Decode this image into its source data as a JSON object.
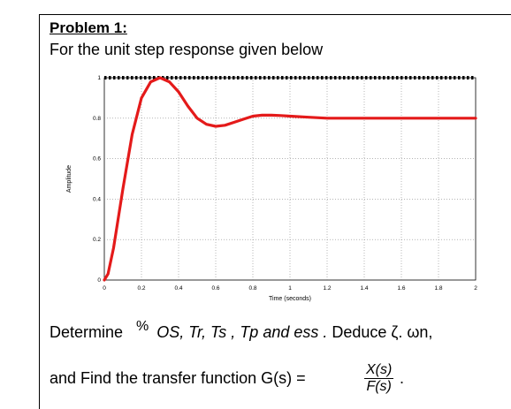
{
  "problem": {
    "title": "Problem 1:",
    "intro": "For the unit step response given below"
  },
  "questions": {
    "determine_word": "Determine",
    "percent_sign": "%",
    "specs": "OS, Tr, Ts , Tp and ess .",
    "deduce": "Deduce ζ. ωn,",
    "find_text": "and Find the transfer function G(s) =",
    "fraction_numerator": "X(s)",
    "fraction_denominator": "F(s)",
    "end_dot": "."
  },
  "chart_data": {
    "type": "line",
    "title": "",
    "xlabel": "Time (seconds)",
    "ylabel": "Amplitude",
    "xlim": [
      0,
      2
    ],
    "ylim": [
      0,
      1
    ],
    "xticks": [
      "0",
      "0.2",
      "0.4",
      "0.6",
      "0.8",
      "1",
      "1.2",
      "1.4",
      "1.6",
      "1.8",
      "2"
    ],
    "yticks": [
      "0",
      "0.2",
      "0.4",
      "0.6",
      "0.8",
      "1"
    ],
    "grid": true,
    "reference_level": 1.0,
    "series": [
      {
        "color": "#e41a1a",
        "x": [
          0,
          0.02,
          0.05,
          0.1,
          0.15,
          0.2,
          0.25,
          0.3,
          0.35,
          0.4,
          0.45,
          0.5,
          0.55,
          0.6,
          0.65,
          0.7,
          0.75,
          0.8,
          0.85,
          0.9,
          0.95,
          1.0,
          1.1,
          1.2,
          1.3,
          1.4,
          1.5,
          1.6,
          1.7,
          1.8,
          1.9,
          2.0
        ],
        "y": [
          0,
          0.03,
          0.16,
          0.45,
          0.72,
          0.9,
          0.98,
          1.0,
          0.98,
          0.93,
          0.86,
          0.8,
          0.77,
          0.76,
          0.765,
          0.78,
          0.795,
          0.81,
          0.815,
          0.815,
          0.813,
          0.81,
          0.805,
          0.8,
          0.8,
          0.8,
          0.8,
          0.8,
          0.8,
          0.8,
          0.8,
          0.8
        ]
      }
    ]
  },
  "colors": {
    "curve": "#e41a1a",
    "grid": "#888888",
    "reference": "#000000"
  }
}
